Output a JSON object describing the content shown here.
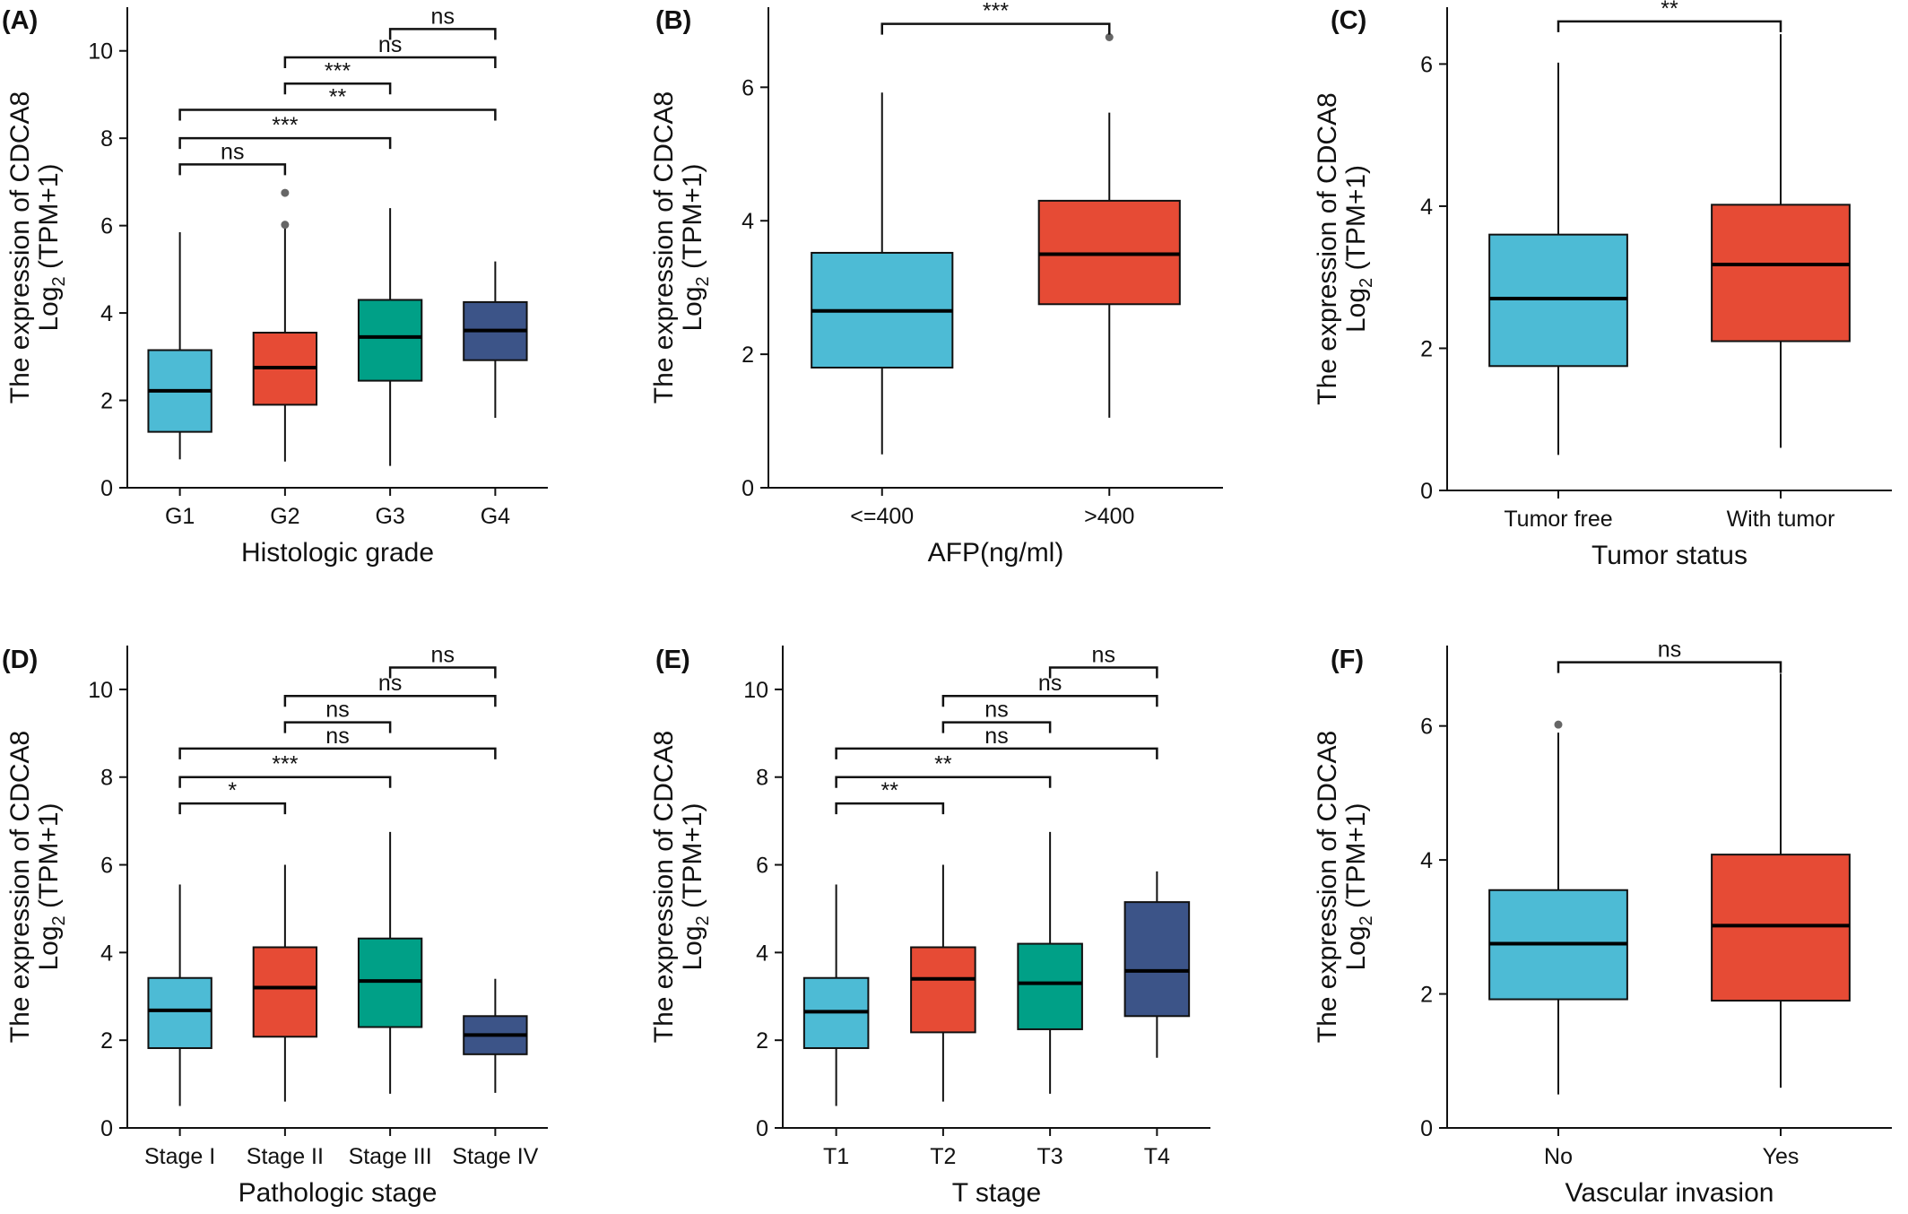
{
  "colors": {
    "blue": "#4dbbd5",
    "red": "#e64b35",
    "green": "#00a087",
    "navy": "#3c5488",
    "outlier": "#666666"
  },
  "chart_data": [
    {
      "type": "box",
      "panel_label": "(A)",
      "xlabel": "Histologic grade",
      "ylabel": "The expression of CDCA8",
      "ylabel2": "Log",
      "ylabel2_sub": "2",
      "ylabel2_tail": " (TPM+1)",
      "ylim": [
        0,
        11
      ],
      "yticks": [
        0,
        2,
        4,
        6,
        8,
        10
      ],
      "categories": [
        "G1",
        "G2",
        "G3",
        "G4"
      ],
      "colors": [
        "blue",
        "red",
        "green",
        "navy"
      ],
      "boxes": [
        {
          "min": 0.65,
          "q1": 1.28,
          "median": 2.22,
          "q3": 3.15,
          "max": 5.85,
          "outliers": []
        },
        {
          "min": 0.6,
          "q1": 1.9,
          "median": 2.75,
          "q3": 3.55,
          "max": 6.0,
          "outliers": [
            6.02,
            6.75
          ]
        },
        {
          "min": 0.5,
          "q1": 2.45,
          "median": 3.45,
          "q3": 4.3,
          "max": 6.4,
          "outliers": []
        },
        {
          "min": 1.6,
          "q1": 2.92,
          "median": 3.6,
          "q3": 4.25,
          "max": 5.18,
          "outliers": []
        }
      ],
      "comparisons": [
        {
          "from": 0,
          "to": 1,
          "y": 7.4,
          "label": "ns"
        },
        {
          "from": 0,
          "to": 2,
          "y": 8.0,
          "label": "***"
        },
        {
          "from": 0,
          "to": 3,
          "y": 8.65,
          "label": "**"
        },
        {
          "from": 1,
          "to": 2,
          "y": 9.25,
          "label": "***"
        },
        {
          "from": 1,
          "to": 3,
          "y": 9.85,
          "label": "ns"
        },
        {
          "from": 2,
          "to": 3,
          "y": 10.5,
          "label": "ns"
        }
      ]
    },
    {
      "type": "box",
      "panel_label": "(B)",
      "xlabel": "AFP(ng/ml)",
      "ylabel": "The expression of CDCA8",
      "ylabel2": "Log",
      "ylabel2_sub": "2",
      "ylabel2_tail": " (TPM+1)",
      "ylim": [
        0,
        7.2
      ],
      "yticks": [
        0,
        2,
        4,
        6
      ],
      "categories": [
        "<=400",
        ">400"
      ],
      "colors": [
        "blue",
        "red"
      ],
      "boxes": [
        {
          "min": 0.5,
          "q1": 1.8,
          "median": 2.65,
          "q3": 3.52,
          "max": 5.92,
          "outliers": []
        },
        {
          "min": 1.05,
          "q1": 2.75,
          "median": 3.5,
          "q3": 4.3,
          "max": 5.62,
          "outliers": [
            6.75
          ]
        }
      ],
      "comparisons": [
        {
          "from": 0,
          "to": 1,
          "y": 6.95,
          "label": "***"
        }
      ]
    },
    {
      "type": "box",
      "panel_label": "(C)",
      "xlabel": "Tumor status",
      "ylabel": "The expression of CDCA8",
      "ylabel2": "Log",
      "ylabel2_sub": "2",
      "ylabel2_tail": " (TPM+1)",
      "ylim": [
        0,
        6.8
      ],
      "yticks": [
        0,
        2,
        4,
        6
      ],
      "categories": [
        "Tumor free",
        "With tumor"
      ],
      "colors": [
        "blue",
        "red"
      ],
      "boxes": [
        {
          "min": 0.5,
          "q1": 1.75,
          "median": 2.7,
          "q3": 3.6,
          "max": 6.02,
          "outliers": []
        },
        {
          "min": 0.6,
          "q1": 2.1,
          "median": 3.18,
          "q3": 4.02,
          "max": 6.42,
          "outliers": []
        }
      ],
      "comparisons": [
        {
          "from": 0,
          "to": 1,
          "y": 6.6,
          "label": "**"
        }
      ]
    },
    {
      "type": "box",
      "panel_label": "(D)",
      "xlabel": "Pathologic stage",
      "ylabel": "The expression of CDCA8",
      "ylabel2": "Log",
      "ylabel2_sub": "2",
      "ylabel2_tail": " (TPM+1)",
      "ylim": [
        0,
        11
      ],
      "yticks": [
        0,
        2,
        4,
        6,
        8,
        10
      ],
      "categories": [
        "Stage I",
        "Stage II",
        "Stage III",
        "Stage IV"
      ],
      "colors": [
        "blue",
        "red",
        "green",
        "navy"
      ],
      "boxes": [
        {
          "min": 0.5,
          "q1": 1.82,
          "median": 2.68,
          "q3": 3.42,
          "max": 5.55,
          "outliers": []
        },
        {
          "min": 0.6,
          "q1": 2.08,
          "median": 3.2,
          "q3": 4.12,
          "max": 6.0,
          "outliers": []
        },
        {
          "min": 0.78,
          "q1": 2.3,
          "median": 3.35,
          "q3": 4.32,
          "max": 6.75,
          "outliers": []
        },
        {
          "min": 0.8,
          "q1": 1.68,
          "median": 2.12,
          "q3": 2.55,
          "max": 3.4,
          "outliers": []
        }
      ],
      "comparisons": [
        {
          "from": 0,
          "to": 1,
          "y": 7.4,
          "label": "*"
        },
        {
          "from": 0,
          "to": 2,
          "y": 8.0,
          "label": "***"
        },
        {
          "from": 0,
          "to": 3,
          "y": 8.65,
          "label": "ns"
        },
        {
          "from": 1,
          "to": 2,
          "y": 9.25,
          "label": "ns"
        },
        {
          "from": 1,
          "to": 3,
          "y": 9.85,
          "label": "ns"
        },
        {
          "from": 2,
          "to": 3,
          "y": 10.5,
          "label": "ns"
        }
      ]
    },
    {
      "type": "box",
      "panel_label": "(E)",
      "xlabel": "T stage",
      "ylabel": "The expression of CDCA8",
      "ylabel2": "Log",
      "ylabel2_sub": "2",
      "ylabel2_tail": " (TPM+1)",
      "ylim": [
        0,
        11
      ],
      "yticks": [
        0,
        2,
        4,
        6,
        8,
        10
      ],
      "categories": [
        "T1",
        "T2",
        "T3",
        "T4"
      ],
      "colors": [
        "blue",
        "red",
        "green",
        "navy"
      ],
      "boxes": [
        {
          "min": 0.5,
          "q1": 1.82,
          "median": 2.65,
          "q3": 3.42,
          "max": 5.55,
          "outliers": []
        },
        {
          "min": 0.6,
          "q1": 2.18,
          "median": 3.4,
          "q3": 4.12,
          "max": 6.0,
          "outliers": []
        },
        {
          "min": 0.78,
          "q1": 2.25,
          "median": 3.3,
          "q3": 4.2,
          "max": 6.75,
          "outliers": []
        },
        {
          "min": 1.6,
          "q1": 2.55,
          "median": 3.58,
          "q3": 5.15,
          "max": 5.85,
          "outliers": []
        }
      ],
      "comparisons": [
        {
          "from": 0,
          "to": 1,
          "y": 7.4,
          "label": "**"
        },
        {
          "from": 0,
          "to": 2,
          "y": 8.0,
          "label": "**"
        },
        {
          "from": 0,
          "to": 3,
          "y": 8.65,
          "label": "ns"
        },
        {
          "from": 1,
          "to": 2,
          "y": 9.25,
          "label": "ns"
        },
        {
          "from": 1,
          "to": 3,
          "y": 9.85,
          "label": "ns"
        },
        {
          "from": 2,
          "to": 3,
          "y": 10.5,
          "label": "ns"
        }
      ]
    },
    {
      "type": "box",
      "panel_label": "(F)",
      "xlabel": "Vascular invasion",
      "ylabel": "The expression of CDCA8",
      "ylabel2": "Log",
      "ylabel2_sub": "2",
      "ylabel2_tail": " (TPM+1)",
      "ylim": [
        0,
        7.2
      ],
      "yticks": [
        0,
        2,
        4,
        6
      ],
      "categories": [
        "No",
        "Yes"
      ],
      "colors": [
        "blue",
        "red"
      ],
      "boxes": [
        {
          "min": 0.5,
          "q1": 1.92,
          "median": 2.75,
          "q3": 3.55,
          "max": 5.9,
          "outliers": [
            6.02
          ]
        },
        {
          "min": 0.6,
          "q1": 1.9,
          "median": 3.02,
          "q3": 4.08,
          "max": 6.78,
          "outliers": []
        }
      ],
      "comparisons": [
        {
          "from": 0,
          "to": 1,
          "y": 6.95,
          "label": "ns"
        }
      ]
    }
  ]
}
